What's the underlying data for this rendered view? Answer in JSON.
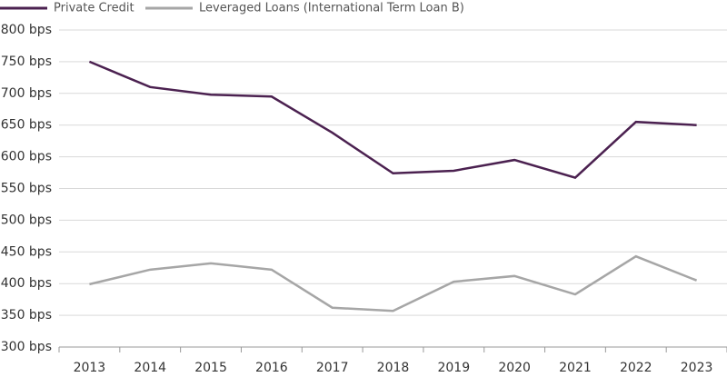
{
  "chart_data": {
    "type": "line",
    "categories": [
      "2013",
      "2014",
      "2015",
      "2016",
      "2017",
      "2018",
      "2019",
      "2020",
      "2021",
      "2022",
      "2023"
    ],
    "series": [
      {
        "name": "Private Credit",
        "color": "#4b2150",
        "values": [
          750,
          710,
          698,
          695,
          638,
          574,
          578,
          595,
          567,
          655,
          650
        ]
      },
      {
        "name": "Leveraged Loans (International Term Loan B)",
        "color": "#a6a6a6",
        "values": [
          399,
          422,
          432,
          422,
          362,
          357,
          403,
          412,
          383,
          443,
          405
        ]
      }
    ],
    "ylim": [
      300,
      800
    ],
    "yticks": [
      {
        "value": 300,
        "label": "300 bps"
      },
      {
        "value": 350,
        "label": "350 bps"
      },
      {
        "value": 400,
        "label": "400 bps"
      },
      {
        "value": 450,
        "label": "450 bps"
      },
      {
        "value": 500,
        "label": "500 bps"
      },
      {
        "value": 550,
        "label": "550 bps"
      },
      {
        "value": 600,
        "label": "600 bps"
      },
      {
        "value": 650,
        "label": "650 bps"
      },
      {
        "value": 700,
        "label": "700 bps"
      },
      {
        "value": 750,
        "label": "750 bps"
      },
      {
        "value": 800,
        "label": "800 bps"
      }
    ],
    "grid": true
  }
}
